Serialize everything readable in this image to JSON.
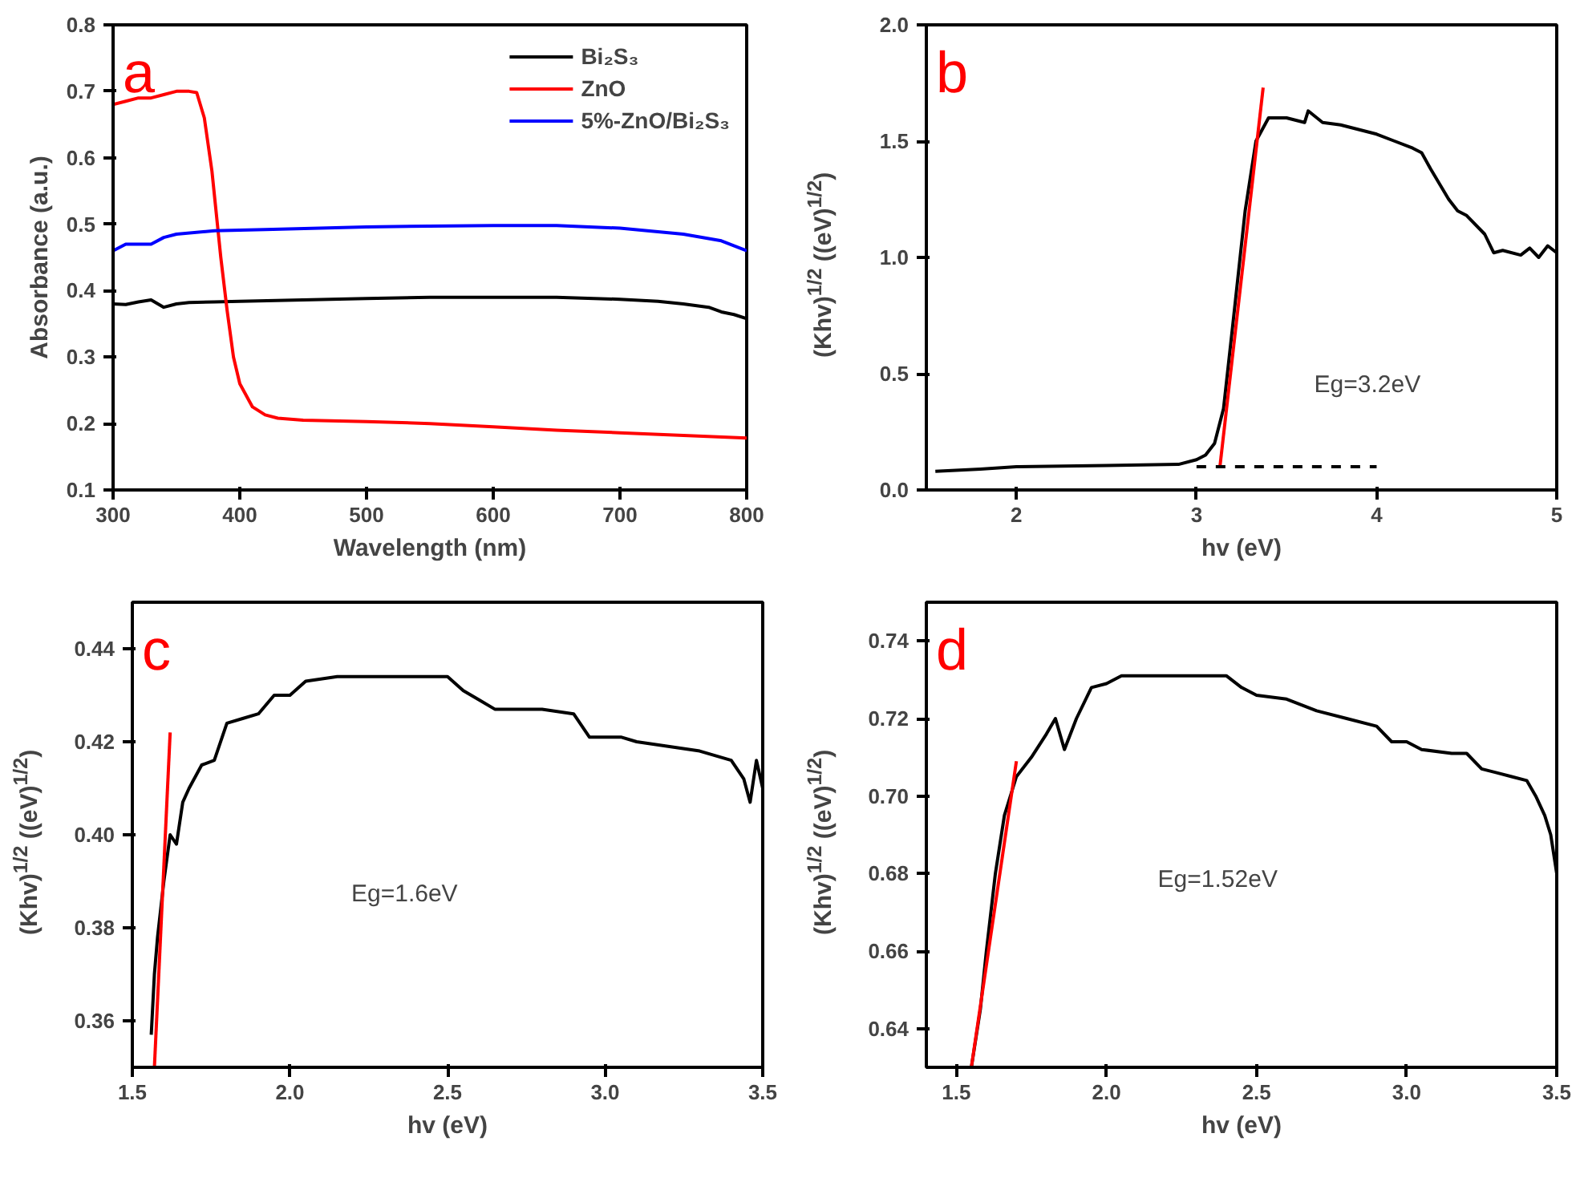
{
  "chart_data": [
    {
      "type": "line",
      "title": "a",
      "xlabel": "Wavelength (nm)",
      "ylabel": "Absorbance (a.u.)",
      "xlim": [
        300,
        800
      ],
      "ylim": [
        0.1,
        0.8
      ],
      "xticks": [
        300,
        400,
        500,
        600,
        700,
        800
      ],
      "yticks": [
        0.1,
        0.2,
        0.3,
        0.4,
        0.5,
        0.6,
        0.7,
        0.8
      ],
      "grid": false,
      "legend": "top right",
      "series": [
        {
          "name": "Bi₂S₃",
          "color": "#000000",
          "x": [
            300,
            310,
            320,
            330,
            340,
            350,
            360,
            380,
            400,
            450,
            500,
            550,
            600,
            650,
            700,
            730,
            750,
            770,
            780,
            790,
            800
          ],
          "values": [
            0.38,
            0.379,
            0.383,
            0.386,
            0.375,
            0.38,
            0.382,
            0.383,
            0.384,
            0.386,
            0.388,
            0.39,
            0.39,
            0.39,
            0.387,
            0.384,
            0.38,
            0.375,
            0.368,
            0.364,
            0.358
          ]
        },
        {
          "name": "ZnO",
          "color": "#ff0000",
          "x": [
            300,
            310,
            320,
            330,
            340,
            350,
            360,
            366,
            372,
            378,
            385,
            390,
            395,
            400,
            410,
            420,
            430,
            450,
            500,
            550,
            600,
            650,
            700,
            750,
            800
          ],
          "values": [
            0.68,
            0.685,
            0.69,
            0.69,
            0.695,
            0.7,
            0.7,
            0.698,
            0.66,
            0.58,
            0.45,
            0.37,
            0.3,
            0.26,
            0.225,
            0.213,
            0.208,
            0.205,
            0.203,
            0.2,
            0.195,
            0.19,
            0.186,
            0.182,
            0.178
          ]
        },
        {
          "name": "5%-ZnO/Bi₂S₃",
          "color": "#0000ff",
          "x": [
            300,
            310,
            330,
            340,
            350,
            380,
            420,
            500,
            600,
            650,
            700,
            750,
            780,
            800
          ],
          "values": [
            0.46,
            0.47,
            0.47,
            0.48,
            0.485,
            0.49,
            0.492,
            0.496,
            0.498,
            0.498,
            0.494,
            0.485,
            0.475,
            0.46
          ]
        }
      ]
    },
    {
      "type": "line",
      "title": "b",
      "xlabel": "hv (eV)",
      "ylabel": "(Khv)$^{1/2}$ ((eV)$^{1/2}$)",
      "xlim": [
        1.5,
        5
      ],
      "ylim": [
        0,
        2
      ],
      "xticks": [
        2,
        3,
        4,
        5
      ],
      "yticks": [
        {
          "value": 0,
          "label": "0.0"
        },
        {
          "value": 0.5,
          "label": "0.5"
        },
        {
          "value": 1,
          "label": "1.0"
        },
        {
          "value": 1.5,
          "label": "1.5"
        },
        {
          "value": 2,
          "label": "2.0"
        }
      ],
      "grid": false,
      "annotations": [
        "Eg=3.2eV"
      ],
      "series": [
        {
          "color": "#000000",
          "x": [
            1.55,
            1.8,
            2.0,
            2.5,
            2.9,
            3.0,
            3.05,
            3.1,
            3.15,
            3.2,
            3.27,
            3.33,
            3.4,
            3.5,
            3.6,
            3.62,
            3.7,
            3.8,
            3.9,
            4.0,
            4.1,
            4.2,
            4.25,
            4.3,
            4.4,
            4.45,
            4.5,
            4.6,
            4.65,
            4.7,
            4.8,
            4.85,
            4.9,
            4.95,
            5.0
          ],
          "values": [
            0.08,
            0.09,
            0.1,
            0.105,
            0.11,
            0.13,
            0.15,
            0.2,
            0.35,
            0.7,
            1.2,
            1.5,
            1.6,
            1.6,
            1.58,
            1.63,
            1.58,
            1.57,
            1.55,
            1.53,
            1.5,
            1.47,
            1.45,
            1.38,
            1.25,
            1.2,
            1.18,
            1.1,
            1.02,
            1.03,
            1.01,
            1.04,
            1.0,
            1.05,
            1.02
          ]
        },
        {
          "color": "#ff0000",
          "x": [
            3.13,
            3.37
          ],
          "values": [
            0.1,
            1.73
          ]
        },
        {
          "color": "#000000",
          "line_style": "dashed",
          "x": [
            3.0,
            4.0
          ],
          "values": [
            0.1,
            0.1
          ]
        }
      ]
    },
    {
      "type": "line",
      "title": "c",
      "xlabel": "hv (eV)",
      "ylabel": "(Khv)$^{1/2}$ ((eV)$^{1/2}$)",
      "xlim": [
        1.5,
        3.5
      ],
      "ylim": [
        0.35,
        0.45
      ],
      "xticks": [
        {
          "value": 1.5,
          "label": "1.5"
        },
        {
          "value": 2,
          "label": "2.0"
        },
        {
          "value": 2.5,
          "label": "2.5"
        },
        {
          "value": 3,
          "label": "3.0"
        },
        {
          "value": 3.5,
          "label": "3.5"
        }
      ],
      "yticks": [
        {
          "value": 0.36,
          "label": "0.36"
        },
        {
          "value": 0.38,
          "label": "0.38"
        },
        {
          "value": 0.4,
          "label": "0.40"
        },
        {
          "value": 0.42,
          "label": "0.42"
        },
        {
          "value": 0.44,
          "label": "0.44"
        }
      ],
      "grid": false,
      "annotations": [
        "Eg=1.6eV"
      ],
      "series": [
        {
          "color": "#000000",
          "x": [
            1.56,
            1.57,
            1.58,
            1.6,
            1.62,
            1.64,
            1.66,
            1.68,
            1.72,
            1.76,
            1.8,
            1.85,
            1.9,
            1.95,
            2.0,
            2.05,
            2.15,
            2.3,
            2.5,
            2.55,
            2.6,
            2.65,
            2.8,
            2.9,
            2.95,
            3.05,
            3.1,
            3.2,
            3.3,
            3.4,
            3.44,
            3.46,
            3.48,
            3.5
          ],
          "values": [
            0.357,
            0.37,
            0.378,
            0.39,
            0.4,
            0.398,
            0.407,
            0.41,
            0.415,
            0.416,
            0.424,
            0.425,
            0.426,
            0.43,
            0.43,
            0.433,
            0.434,
            0.434,
            0.434,
            0.431,
            0.429,
            0.427,
            0.427,
            0.426,
            0.421,
            0.421,
            0.42,
            0.419,
            0.418,
            0.416,
            0.412,
            0.407,
            0.416,
            0.41
          ]
        },
        {
          "color": "#ff0000",
          "x": [
            1.57,
            1.62
          ],
          "values": [
            0.35,
            0.422
          ]
        }
      ]
    },
    {
      "type": "line",
      "title": "d",
      "xlabel": "hv (eV)",
      "ylabel": "(Khv)$^{1/2}$ ((eV)$^{1/2}$)",
      "xlim": [
        1.4,
        3.5
      ],
      "ylim": [
        0.63,
        0.75
      ],
      "xticks": [
        {
          "value": 1.5,
          "label": "1.5"
        },
        {
          "value": 2,
          "label": "2.0"
        },
        {
          "value": 2.5,
          "label": "2.5"
        },
        {
          "value": 3,
          "label": "3.0"
        },
        {
          "value": 3.5,
          "label": "3.5"
        }
      ],
      "yticks": [
        {
          "value": 0.64,
          "label": "0.64"
        },
        {
          "value": 0.66,
          "label": "0.66"
        },
        {
          "value": 0.68,
          "label": "0.68"
        },
        {
          "value": 0.7,
          "label": "0.70"
        },
        {
          "value": 0.72,
          "label": "0.72"
        },
        {
          "value": 0.74,
          "label": "0.74"
        }
      ],
      "grid": false,
      "annotations": [
        "Eg=1.52eV"
      ],
      "series": [
        {
          "color": "#000000",
          "x": [
            1.55,
            1.58,
            1.6,
            1.63,
            1.66,
            1.7,
            1.75,
            1.8,
            1.83,
            1.86,
            1.9,
            1.95,
            2.0,
            2.05,
            2.2,
            2.4,
            2.45,
            2.5,
            2.6,
            2.7,
            2.8,
            2.9,
            2.95,
            3.0,
            3.05,
            3.15,
            3.2,
            3.25,
            3.3,
            3.35,
            3.4,
            3.43,
            3.46,
            3.48,
            3.5
          ],
          "values": [
            0.63,
            0.645,
            0.66,
            0.68,
            0.695,
            0.705,
            0.71,
            0.716,
            0.72,
            0.712,
            0.72,
            0.728,
            0.729,
            0.731,
            0.731,
            0.731,
            0.728,
            0.726,
            0.725,
            0.722,
            0.72,
            0.718,
            0.714,
            0.714,
            0.712,
            0.711,
            0.711,
            0.707,
            0.706,
            0.705,
            0.704,
            0.7,
            0.695,
            0.69,
            0.68
          ]
        },
        {
          "color": "#ff0000",
          "x": [
            1.55,
            1.7
          ],
          "values": [
            0.63,
            0.709
          ]
        }
      ]
    }
  ]
}
